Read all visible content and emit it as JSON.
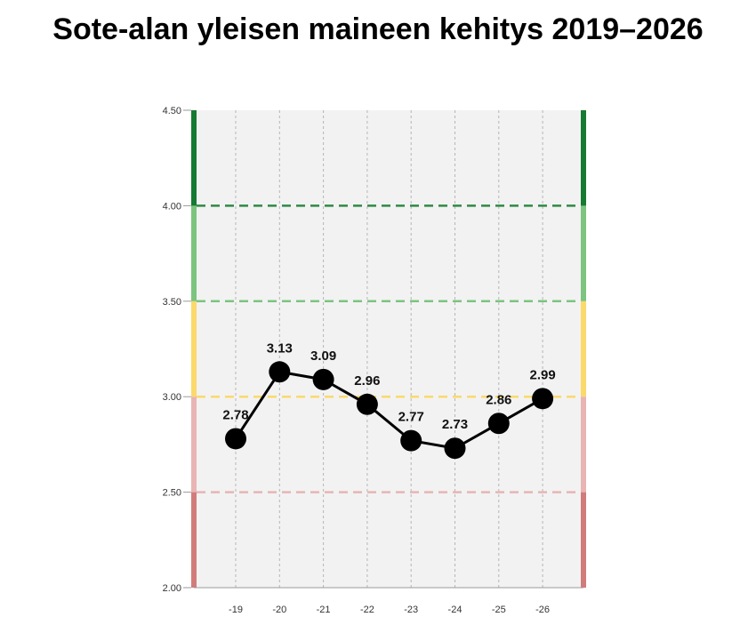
{
  "chart_data": {
    "type": "line",
    "title": "Sote-alan yleisen maineen kehitys 2019–2026",
    "xlabel": "",
    "ylabel": "",
    "categories": [
      "-19",
      "-20",
      "-21",
      "-22",
      "-23",
      "-24",
      "-25",
      "-26"
    ],
    "series": [
      {
        "values": [
          2.78,
          3.13,
          3.09,
          2.96,
          2.77,
          2.73,
          2.86,
          2.99
        ]
      }
    ],
    "data_labels": [
      "2.78",
      "3.13",
      "3.09",
      "2.96",
      "2.77",
      "2.73",
      "2.86",
      "2.99"
    ],
    "ylim": [
      2.0,
      4.5
    ],
    "yticks": [
      2.0,
      2.5,
      3.0,
      3.5,
      4.0,
      4.5
    ],
    "ytick_labels": [
      "2.00",
      "2.50",
      "3.00",
      "3.50",
      "4.00",
      "4.50"
    ],
    "grid": true,
    "legend": "none",
    "bands": [
      {
        "from": 2.0,
        "to": 2.5,
        "color": "#d27b7b"
      },
      {
        "from": 2.5,
        "to": 3.0,
        "color": "#e8b4b4"
      },
      {
        "from": 3.0,
        "to": 3.5,
        "color": "#fbd96a"
      },
      {
        "from": 3.5,
        "to": 4.0,
        "color": "#7cc47f"
      },
      {
        "from": 4.0,
        "to": 4.5,
        "color": "#157a32"
      }
    ],
    "threshold_lines": [
      {
        "y": 2.5,
        "color": "#e8b4b4"
      },
      {
        "y": 3.0,
        "color": "#fbd96a"
      },
      {
        "y": 3.5,
        "color": "#7cc47f"
      },
      {
        "y": 4.0,
        "color": "#2f8a45"
      }
    ],
    "colors": {
      "line": "#000000",
      "marker": "#000000",
      "plot_bg": "#f2f2f2",
      "vgrid": "#b5b5b5"
    }
  }
}
